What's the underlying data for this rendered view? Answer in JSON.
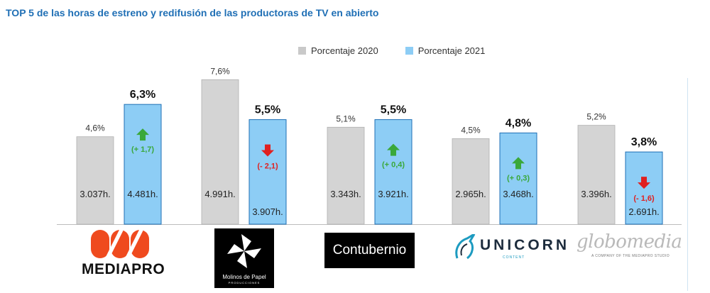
{
  "title": "TOP 5 de las horas de estreno y redifusión de las productoras de TV en abierto",
  "colors": {
    "gray": "#d4d4d4",
    "blue": "#8dcdf5",
    "blue_border": "#1f6fb5",
    "up": "#3aa83a",
    "down": "#e02020"
  },
  "legend": {
    "items": [
      {
        "label": "Porcentaje 2020",
        "color": "#c9c9c9"
      },
      {
        "label": "Porcentaje 2021",
        "color": "#8dcdf5"
      }
    ]
  },
  "logos": {
    "mediapro": "MEDIAPRO",
    "molinos": "Molinos de Papel",
    "molinos_sub": "PRODUCCIONES",
    "contubernio": "Contubernio",
    "unicorn": "UNICORN",
    "unicorn_sub": "CONTENT",
    "globomedia": "globomedia",
    "globomedia_sub": "A COMPANY OF THE MEDIAPRO STUDIO"
  },
  "chart_data": {
    "type": "bar",
    "categories": [
      "MEDIAPRO",
      "Molinos de Papel",
      "Contubernio",
      "UNICORN",
      "globomedia"
    ],
    "ylim": [
      0,
      8
    ],
    "series": [
      {
        "name": "Porcentaje 2020",
        "values": [
          4.6,
          7.6,
          5.1,
          4.5,
          5.2
        ],
        "value_labels": [
          "4,6%",
          "7,6%",
          "5,1%",
          "4,5%",
          "5,2%"
        ],
        "hours_labels": [
          "3.037h.",
          "4.991h.",
          "3.343h.",
          "2.965h.",
          "3.396h."
        ]
      },
      {
        "name": "Porcentaje 2021",
        "values": [
          6.3,
          5.5,
          5.5,
          4.8,
          3.8
        ],
        "value_labels": [
          "6,3%",
          "5,5%",
          "5,5%",
          "4,8%",
          "3,8%"
        ],
        "hours_labels": [
          "4.481h.",
          "3.907h.",
          "3.921h.",
          "3.468h.",
          "2.691h."
        ]
      }
    ],
    "changes": [
      {
        "direction": "up",
        "label": "(+ 1,7)",
        "icon": "arrow-up-icon"
      },
      {
        "direction": "down",
        "label": "(- 2,1)",
        "icon": "arrow-down-icon"
      },
      {
        "direction": "up",
        "label": "(+ 0,4)",
        "icon": "arrow-up-icon"
      },
      {
        "direction": "up",
        "label": "(+ 0,3)",
        "icon": "arrow-up-icon"
      },
      {
        "direction": "down",
        "label": "(- 1,6)",
        "icon": "arrow-down-icon"
      }
    ]
  }
}
